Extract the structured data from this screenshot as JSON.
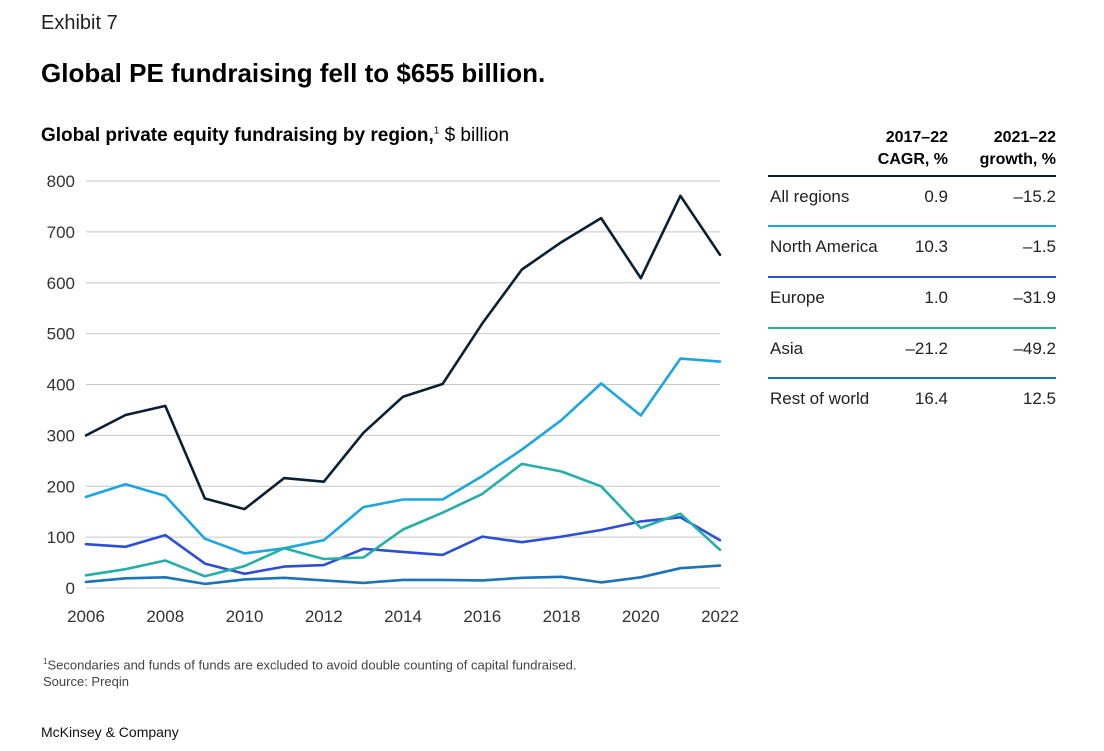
{
  "exhibit": "Exhibit 7",
  "headline": "Global PE fundraising fell to $655 billion.",
  "subtitle": {
    "bold": "Global private equity fundraising by region,",
    "footnote_marker": "1",
    "unit": " $ billion"
  },
  "table": {
    "col1": {
      "line1": "2017–22",
      "line2": "CAGR, %"
    },
    "col2": {
      "line1": "2021–22",
      "line2": "growth, %"
    },
    "rows": [
      {
        "name": "All regions",
        "cagr": "0.9",
        "growth": "–15.2",
        "color": "#0b1f33"
      },
      {
        "name": "North America",
        "cagr": "10.3",
        "growth": "–1.5",
        "color": "#1ca6e0"
      },
      {
        "name": "Europe",
        "cagr": "1.0",
        "growth": "–31.9",
        "color": "#2c4fd6"
      },
      {
        "name": "Asia",
        "cagr": "–21.2",
        "growth": "–49.2",
        "color": "#22b0a8"
      },
      {
        "name": "Rest of world",
        "cagr": "16.4",
        "growth": "12.5",
        "color": "#1b73b8"
      }
    ]
  },
  "footnote": {
    "marker": "1",
    "text": "Secondaries and funds of funds are excluded to avoid double counting of capital fundraised.",
    "source": "Source: Preqin"
  },
  "brand": "McKinsey & Company",
  "chart_data": {
    "type": "line",
    "title": "Global private equity fundraising by region, $ billion",
    "x": [
      2006,
      2007,
      2008,
      2009,
      2010,
      2011,
      2012,
      2013,
      2014,
      2015,
      2016,
      2017,
      2018,
      2019,
      2020,
      2021,
      2022
    ],
    "xticks": [
      "2006",
      "2008",
      "2010",
      "2012",
      "2014",
      "2016",
      "2018",
      "2020",
      "2022"
    ],
    "yticks": [
      "0",
      "100",
      "200",
      "300",
      "400",
      "500",
      "600",
      "700",
      "800"
    ],
    "ylim": [
      0,
      800
    ],
    "xlim": [
      2006,
      2022
    ],
    "grid": true,
    "series": [
      {
        "name": "All regions",
        "color": "#0b1f33",
        "values": [
          300,
          340,
          358,
          176,
          155,
          216,
          209,
          305,
          376,
          401,
          520,
          626,
          680,
          727,
          609,
          771,
          655
        ]
      },
      {
        "name": "North America",
        "color": "#1ca6e0",
        "values": [
          179,
          204,
          181,
          97,
          68,
          78,
          94,
          159,
          174,
          174,
          220,
          272,
          330,
          402,
          339,
          451,
          445
        ]
      },
      {
        "name": "Europe",
        "color": "#2c4fd6",
        "values": [
          86,
          81,
          104,
          48,
          28,
          42,
          45,
          77,
          71,
          65,
          101,
          90,
          101,
          114,
          131,
          139,
          94
        ]
      },
      {
        "name": "Asia",
        "color": "#22b0a8",
        "values": [
          25,
          37,
          54,
          23,
          43,
          78,
          57,
          60,
          115,
          148,
          185,
          244,
          229,
          200,
          118,
          146,
          75
        ]
      },
      {
        "name": "Rest of world",
        "color": "#1b73b8",
        "values": [
          12,
          19,
          21,
          8,
          17,
          20,
          15,
          10,
          16,
          16,
          15,
          20,
          22,
          11,
          21,
          39,
          44
        ]
      }
    ]
  }
}
